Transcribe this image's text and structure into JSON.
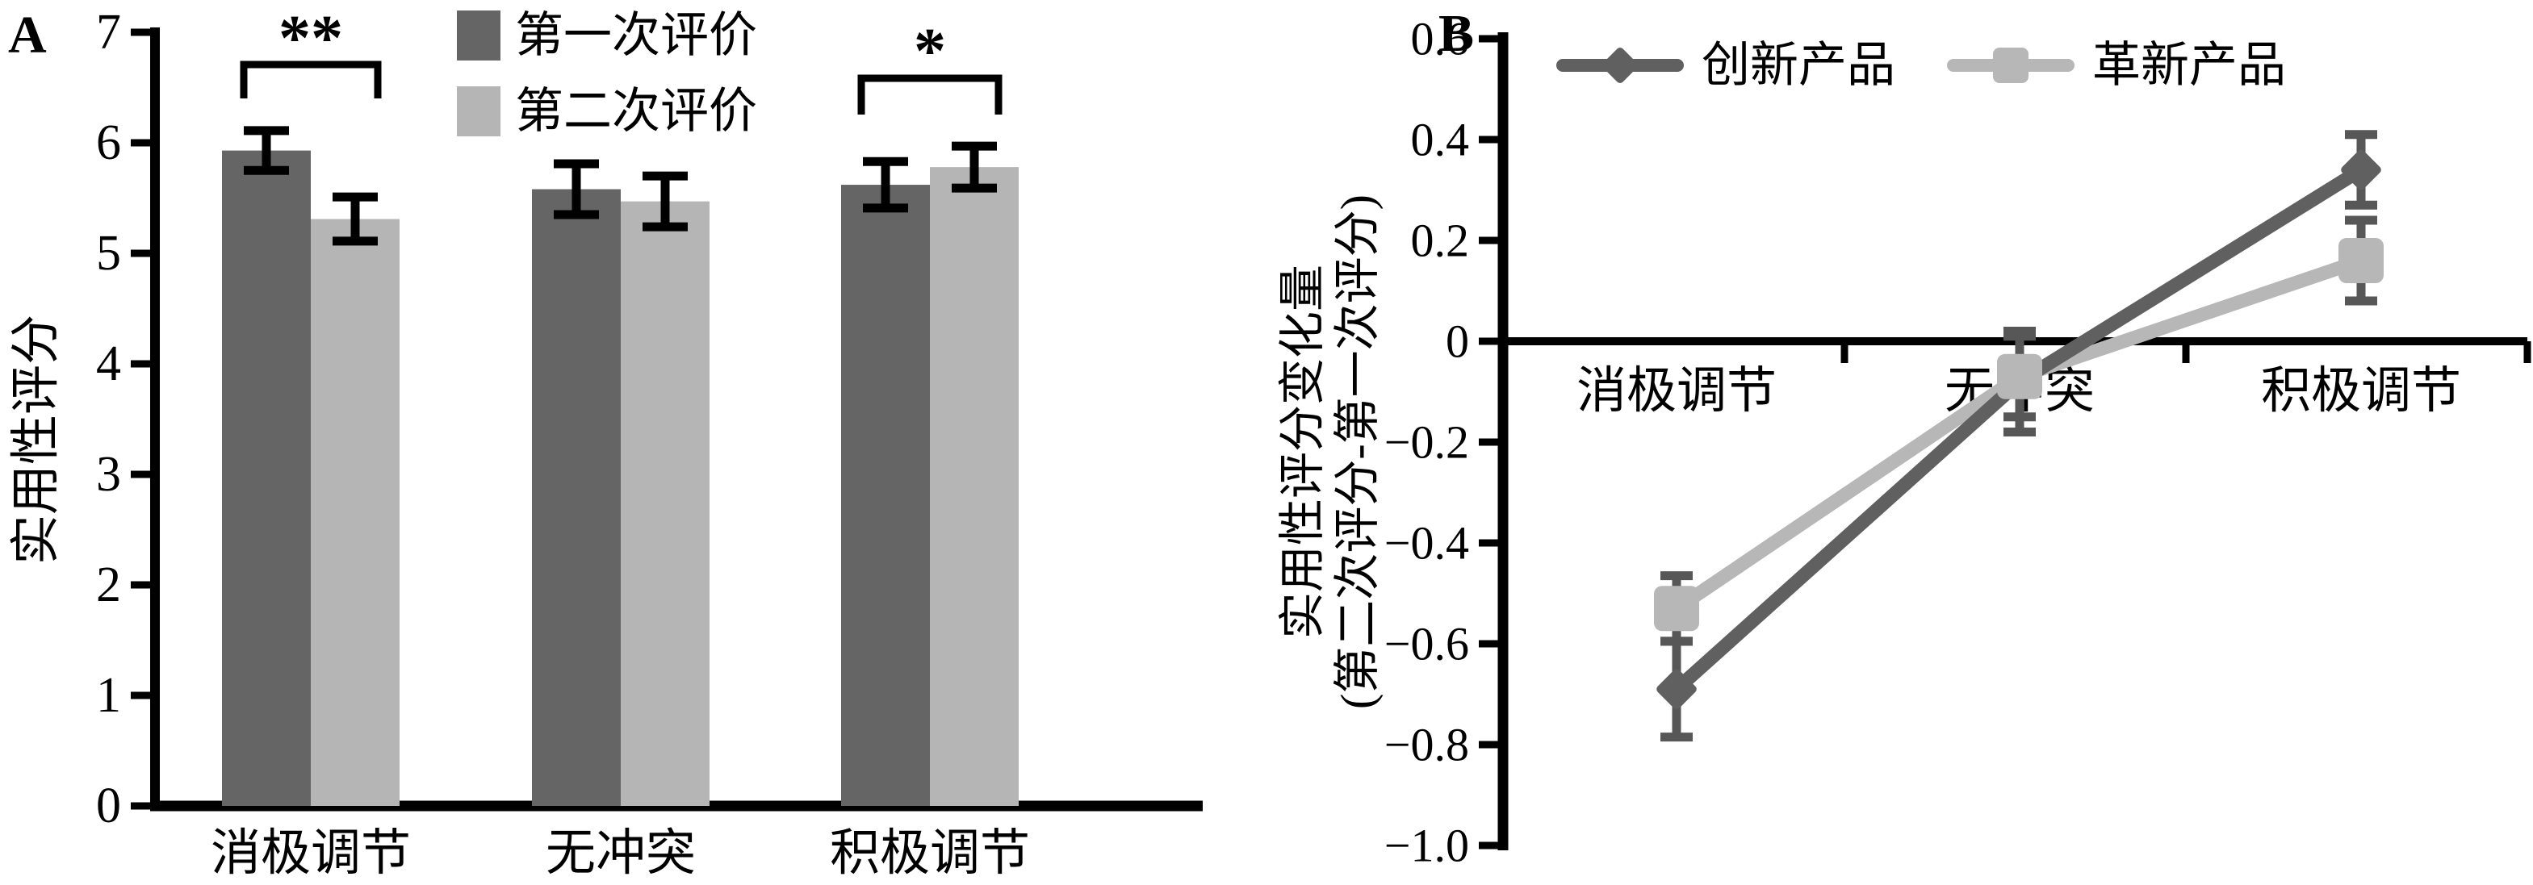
{
  "chart_data": [
    {
      "id": "A",
      "type": "bar",
      "panel_label": "A",
      "title": "",
      "xlabel": "",
      "ylabel": "实用性评分",
      "ylim": [
        0,
        7
      ],
      "yticks": [
        7,
        6,
        5,
        4,
        3,
        2,
        1,
        0
      ],
      "ytick_labels": [
        "7",
        "6",
        "5",
        "4",
        "3",
        "2",
        "1",
        "0"
      ],
      "categories": [
        "消极调节",
        "无冲突",
        "积极调节"
      ],
      "legend_position": "top-center",
      "grid": false,
      "series": [
        {
          "name": "第一次评价",
          "color": "#656565",
          "values": [
            5.93,
            5.58,
            5.62
          ],
          "errors": [
            0.18,
            0.23,
            0.21
          ]
        },
        {
          "name": "第二次评价",
          "color": "#b5b5b5",
          "values": [
            5.31,
            5.47,
            5.78
          ],
          "errors": [
            0.2,
            0.23,
            0.19
          ]
        }
      ],
      "significance": [
        {
          "category_index": 0,
          "label": "**"
        },
        {
          "category_index": 2,
          "label": "*"
        }
      ],
      "axis_color": "#000000"
    },
    {
      "id": "B",
      "type": "line",
      "panel_label": "B",
      "title": "",
      "xlabel": "",
      "ylabel_line1": "实用性评分变化量",
      "ylabel_line2": "(第二次评分-第一次评分)",
      "ylim": [
        -1.0,
        0.6
      ],
      "yticks": [
        0.6,
        0.4,
        0.2,
        0,
        -0.2,
        -0.4,
        -0.6,
        -0.8,
        -1.0
      ],
      "ytick_labels": [
        "0.6",
        "0.4",
        "0.2",
        "0",
        "−0.2",
        "−0.4",
        "−0.6",
        "−0.8",
        "−1.0"
      ],
      "categories": [
        "消极调节",
        "无冲突",
        "积极调节"
      ],
      "legend_position": "top",
      "grid": false,
      "series": [
        {
          "name": "创新产品",
          "marker": "diamond",
          "color": "#606060",
          "values": [
            -0.69,
            -0.08,
            0.34
          ],
          "errors": [
            0.095,
            0.1,
            0.07
          ]
        },
        {
          "name": "革新产品",
          "marker": "square",
          "color": "#b7b7b7",
          "values": [
            -0.53,
            -0.07,
            0.16
          ],
          "errors": [
            0.065,
            0.08,
            0.08
          ]
        }
      ],
      "error_bar_color": "#575757",
      "axis_color": "#000000"
    }
  ]
}
